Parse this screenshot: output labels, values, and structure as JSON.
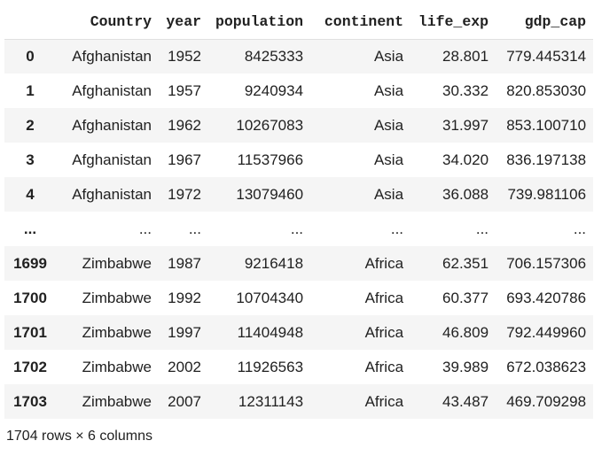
{
  "table": {
    "columns": [
      "Country",
      "year",
      "population",
      "continent",
      "life_exp",
      "gdp_cap"
    ],
    "rows": [
      {
        "index": "0",
        "cells": [
          "Afghanistan",
          "1952",
          "8425333",
          "Asia",
          "28.801",
          "779.445314"
        ]
      },
      {
        "index": "1",
        "cells": [
          "Afghanistan",
          "1957",
          "9240934",
          "Asia",
          "30.332",
          "820.853030"
        ]
      },
      {
        "index": "2",
        "cells": [
          "Afghanistan",
          "1962",
          "10267083",
          "Asia",
          "31.997",
          "853.100710"
        ]
      },
      {
        "index": "3",
        "cells": [
          "Afghanistan",
          "1967",
          "11537966",
          "Asia",
          "34.020",
          "836.197138"
        ]
      },
      {
        "index": "4",
        "cells": [
          "Afghanistan",
          "1972",
          "13079460",
          "Asia",
          "36.088",
          "739.981106"
        ]
      },
      {
        "index": "...",
        "cells": [
          "...",
          "...",
          "...",
          "...",
          "...",
          "..."
        ]
      },
      {
        "index": "1699",
        "cells": [
          "Zimbabwe",
          "1987",
          "9216418",
          "Africa",
          "62.351",
          "706.157306"
        ]
      },
      {
        "index": "1700",
        "cells": [
          "Zimbabwe",
          "1992",
          "10704340",
          "Africa",
          "60.377",
          "693.420786"
        ]
      },
      {
        "index": "1701",
        "cells": [
          "Zimbabwe",
          "1997",
          "11404948",
          "Africa",
          "46.809",
          "792.449960"
        ]
      },
      {
        "index": "1702",
        "cells": [
          "Zimbabwe",
          "2002",
          "11926563",
          "Africa",
          "39.989",
          "672.038623"
        ]
      },
      {
        "index": "1703",
        "cells": [
          "Zimbabwe",
          "2007",
          "12311143",
          "Africa",
          "43.487",
          "469.709298"
        ]
      }
    ]
  },
  "footer": {
    "shape_text": "1704 rows × 6 columns"
  }
}
